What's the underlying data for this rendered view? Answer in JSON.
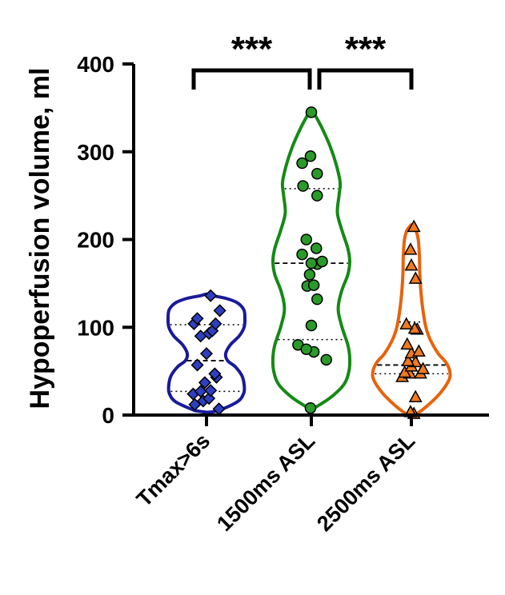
{
  "chart_data": {
    "type": "violin",
    "title": "",
    "xlabel": "",
    "ylabel": "Hypoperfusion volume, ml",
    "ylim": [
      0,
      400
    ],
    "yticks": [
      "0",
      "100",
      "200",
      "300",
      "400"
    ],
    "grid": false,
    "legend": "none",
    "categories": [
      "Tmax>6s",
      "1500ms ASL",
      "2500ms ASL"
    ],
    "series": [
      {
        "name": "Tmax>6s",
        "color": "#1a1a9a",
        "fill": "#2e3fc0",
        "marker": "diamond",
        "quartiles": {
          "q1": 27,
          "median": 62,
          "q3": 103
        },
        "density": [
          [
            5,
            0.3
          ],
          [
            15,
            0.8
          ],
          [
            25,
            0.97
          ],
          [
            35,
            0.98
          ],
          [
            45,
            0.92
          ],
          [
            55,
            0.75
          ],
          [
            62,
            0.55
          ],
          [
            70,
            0.5
          ],
          [
            80,
            0.62
          ],
          [
            90,
            0.85
          ],
          [
            100,
            0.98
          ],
          [
            110,
            1.0
          ],
          [
            120,
            0.97
          ],
          [
            128,
            0.8
          ],
          [
            133,
            0.5
          ],
          [
            136,
            0.15
          ]
        ],
        "points": [
          [
            0.3,
            7
          ],
          [
            -0.28,
            12
          ],
          [
            -0.08,
            16
          ],
          [
            0.06,
            19
          ],
          [
            -0.32,
            24
          ],
          [
            -0.14,
            27
          ],
          [
            0.1,
            28
          ],
          [
            -0.04,
            37
          ],
          [
            0.24,
            43
          ],
          [
            0.2,
            47
          ],
          [
            -0.22,
            57
          ],
          [
            0.0,
            70
          ],
          [
            -0.14,
            90
          ],
          [
            0.06,
            93
          ],
          [
            0.14,
            96
          ],
          [
            -0.3,
            104
          ],
          [
            0.22,
            104
          ],
          [
            -0.22,
            110
          ],
          [
            0.32,
            119
          ],
          [
            0.1,
            136
          ]
        ]
      },
      {
        "name": "1500ms ASL",
        "color": "#148a14",
        "fill": "#2a9a2a",
        "marker": "circle",
        "quartiles": {
          "q1": 86,
          "median": 173,
          "q3": 258
        },
        "density": [
          [
            8,
            0.08
          ],
          [
            20,
            0.5
          ],
          [
            35,
            0.85
          ],
          [
            50,
            0.98
          ],
          [
            65,
            1.0
          ],
          [
            80,
            0.95
          ],
          [
            100,
            0.8
          ],
          [
            120,
            0.7
          ],
          [
            140,
            0.78
          ],
          [
            160,
            0.95
          ],
          [
            175,
            1.0
          ],
          [
            190,
            0.95
          ],
          [
            210,
            0.8
          ],
          [
            230,
            0.68
          ],
          [
            250,
            0.72
          ],
          [
            265,
            0.75
          ],
          [
            285,
            0.65
          ],
          [
            305,
            0.5
          ],
          [
            325,
            0.3
          ],
          [
            340,
            0.12
          ],
          [
            346,
            0.03
          ]
        ],
        "points": [
          [
            -0.02,
            8
          ],
          [
            0.36,
            63
          ],
          [
            0.06,
            72
          ],
          [
            -0.32,
            80
          ],
          [
            -0.12,
            75
          ],
          [
            0.0,
            102
          ],
          [
            0.14,
            132
          ],
          [
            -0.1,
            147
          ],
          [
            0.06,
            148
          ],
          [
            -0.04,
            160
          ],
          [
            0.14,
            172
          ],
          [
            0.26,
            175
          ],
          [
            0.0,
            173
          ],
          [
            -0.22,
            183
          ],
          [
            0.12,
            190
          ],
          [
            -0.12,
            200
          ],
          [
            0.14,
            250
          ],
          [
            -0.2,
            261
          ],
          [
            0.14,
            275
          ],
          [
            -0.22,
            287
          ],
          [
            -0.02,
            295
          ],
          [
            0.0,
            345
          ]
        ]
      },
      {
        "name": "2500ms ASL",
        "color": "#e8620a",
        "fill": "#f07a20",
        "marker": "triangle",
        "quartiles": {
          "q1": 47,
          "median": 57,
          "q3": 106
        },
        "density": [
          [
            0,
            0.1
          ],
          [
            10,
            0.4
          ],
          [
            25,
            0.75
          ],
          [
            40,
            0.98
          ],
          [
            50,
            1.0
          ],
          [
            60,
            0.9
          ],
          [
            70,
            0.7
          ],
          [
            85,
            0.5
          ],
          [
            100,
            0.38
          ],
          [
            120,
            0.3
          ],
          [
            140,
            0.25
          ],
          [
            160,
            0.22
          ],
          [
            180,
            0.21
          ],
          [
            200,
            0.18
          ],
          [
            210,
            0.12
          ],
          [
            215,
            0.04
          ]
        ],
        "points": [
          [
            0.06,
            1
          ],
          [
            -0.02,
            3
          ],
          [
            0.1,
            20
          ],
          [
            -0.22,
            43
          ],
          [
            -0.04,
            47
          ],
          [
            0.22,
            47
          ],
          [
            -0.16,
            48
          ],
          [
            0.28,
            52
          ],
          [
            0.0,
            55
          ],
          [
            0.1,
            60
          ],
          [
            -0.08,
            61
          ],
          [
            0.0,
            70
          ],
          [
            0.18,
            72
          ],
          [
            -0.1,
            80
          ],
          [
            0.14,
            97
          ],
          [
            0.08,
            98
          ],
          [
            -0.12,
            103
          ],
          [
            0.1,
            155
          ],
          [
            0.0,
            170
          ],
          [
            -0.02,
            188
          ],
          [
            0.06,
            214
          ]
        ]
      }
    ],
    "annotations": [
      {
        "text": "***",
        "from": 0,
        "to": 1
      },
      {
        "text": "***",
        "from": 1,
        "to": 2
      }
    ]
  }
}
